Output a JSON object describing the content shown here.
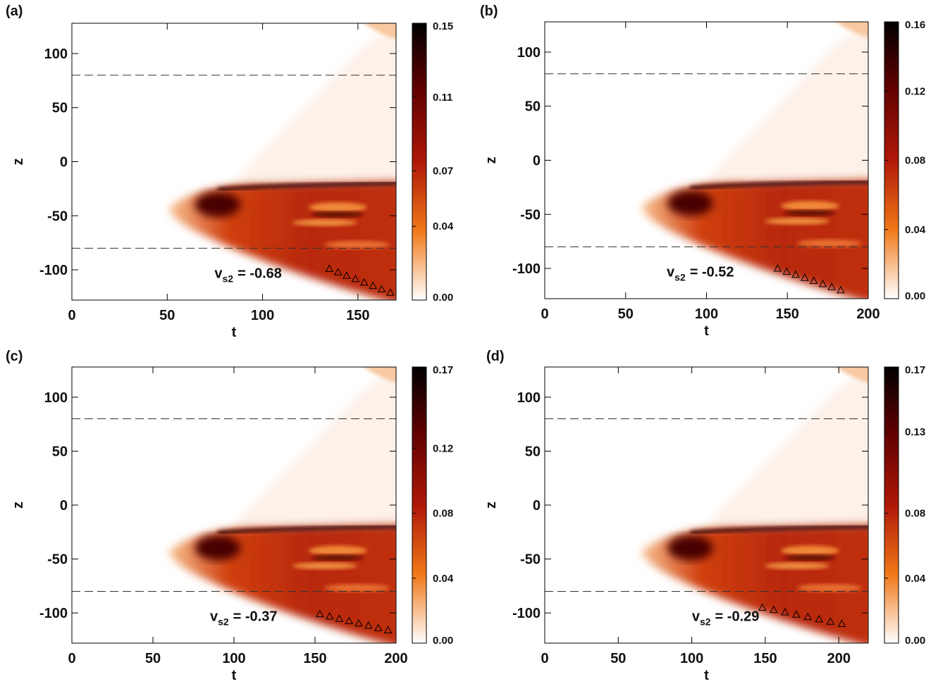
{
  "chart_data": [
    {
      "type": "heatmap",
      "panel_label": "(a)",
      "xlabel": "t",
      "ylabel": "z",
      "xlim": [
        0,
        170
      ],
      "ylim": [
        -128,
        128
      ],
      "xticks": [
        0,
        50,
        100,
        150
      ],
      "yticks": [
        -100,
        -50,
        0,
        50,
        100
      ],
      "clim": [
        0,
        0.15
      ],
      "cticks": [
        {
          "value": 0,
          "label": "0.00"
        },
        0.04,
        0.07,
        0.11,
        0.15
      ],
      "hlines": [
        80,
        -80
      ],
      "annotation": {
        "symbol": "v",
        "subscript": "s2",
        "text": "= -0.68"
      },
      "markers": {
        "x": [
          135,
          139.6,
          144.1,
          148.7,
          153.3,
          157.9,
          162.4,
          167
        ],
        "y": [
          -99,
          -102.1,
          -105.3,
          -108.4,
          -111.6,
          -114.7,
          -117.9,
          -121
        ]
      }
    },
    {
      "type": "heatmap",
      "panel_label": "(b)",
      "xlabel": "t",
      "ylabel": "z",
      "xlim": [
        0,
        200
      ],
      "ylim": [
        -128,
        128
      ],
      "xticks": [
        0,
        50,
        100,
        150,
        200
      ],
      "yticks": [
        -100,
        -50,
        0,
        50,
        100
      ],
      "clim": [
        0,
        0.16
      ],
      "cticks": [
        {
          "value": 0,
          "label": "0.00"
        },
        0.04,
        0.08,
        0.12,
        0.16
      ],
      "hlines": [
        80,
        -80
      ],
      "annotation": {
        "symbol": "v",
        "subscript": "s2",
        "text": "= -0.52"
      },
      "markers": {
        "x": [
          144,
          149.6,
          155.1,
          160.7,
          166.3,
          171.9,
          177.4,
          183
        ],
        "y": [
          -100,
          -102.9,
          -105.7,
          -108.6,
          -111.4,
          -114.3,
          -117.1,
          -120
        ]
      }
    },
    {
      "type": "heatmap",
      "panel_label": "(c)",
      "xlabel": "t",
      "ylabel": "z",
      "xlim": [
        0,
        200
      ],
      "ylim": [
        -128,
        128
      ],
      "xticks": [
        0,
        50,
        100,
        150,
        200
      ],
      "yticks": [
        -100,
        -50,
        0,
        50,
        100
      ],
      "clim": [
        0,
        0.17
      ],
      "cticks": [
        {
          "value": 0,
          "label": "0.00"
        },
        0.04,
        0.08,
        0.12,
        0.17
      ],
      "hlines": [
        80,
        -80
      ],
      "annotation": {
        "symbol": "v",
        "subscript": "s2",
        "text": "= -0.37"
      },
      "markers": {
        "x": [
          153,
          159,
          165,
          171,
          177,
          183,
          189,
          195
        ],
        "y": [
          -101,
          -103.1,
          -105.3,
          -107.4,
          -109.6,
          -111.7,
          -113.9,
          -116
        ]
      }
    },
    {
      "type": "heatmap",
      "panel_label": "(d)",
      "xlabel": "t",
      "ylabel": "z",
      "xlim": [
        0,
        220
      ],
      "ylim": [
        -128,
        128
      ],
      "xticks": [
        0,
        50,
        100,
        150,
        200
      ],
      "yticks": [
        -100,
        -50,
        0,
        50,
        100
      ],
      "clim": [
        0,
        0.17
      ],
      "cticks": [
        {
          "value": 0,
          "label": "0.00"
        },
        0.04,
        0.08,
        0.13,
        0.17
      ],
      "hlines": [
        80,
        -80
      ],
      "annotation": {
        "symbol": "v",
        "subscript": "s2",
        "text": "= -0.29"
      },
      "markers": {
        "x": [
          148,
          155.7,
          163.4,
          171.1,
          178.9,
          186.6,
          194.3,
          202
        ],
        "y": [
          -95,
          -97.1,
          -99.3,
          -101.4,
          -103.6,
          -105.7,
          -107.9,
          -110
        ]
      }
    }
  ]
}
